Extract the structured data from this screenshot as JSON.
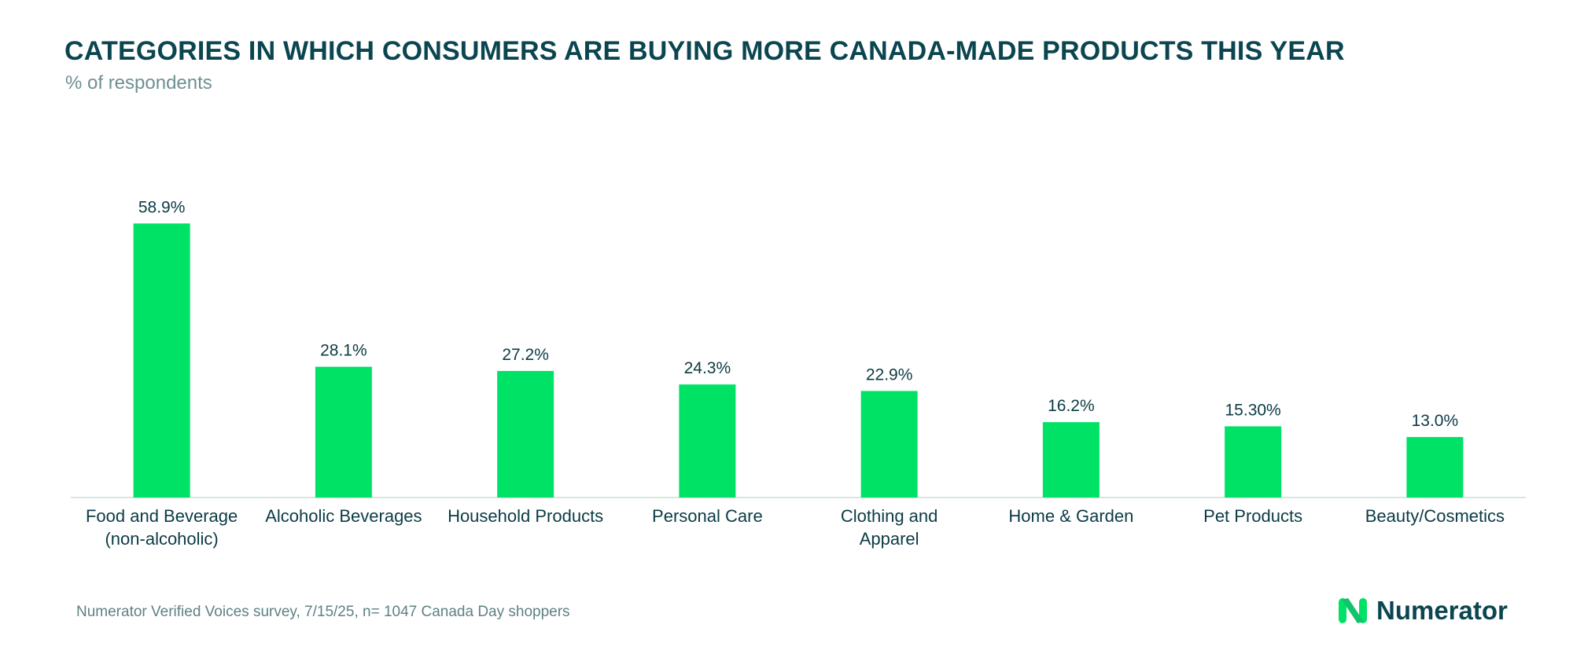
{
  "header": {
    "title": "CATEGORIES IN WHICH CONSUMERS ARE BUYING MORE CANADA-MADE PRODUCTS THIS YEAR",
    "subtitle": "% of respondents"
  },
  "footer": {
    "source": "Numerator Verified Voices survey, 7/15/25, n= 1047 Canada Day shoppers",
    "brand": "Numerator"
  },
  "colors": {
    "bar": "#00e266",
    "baseline": "#d6e6e2",
    "label": "#0b3b45"
  },
  "chart_data": {
    "type": "bar",
    "title": "CATEGORIES IN WHICH CONSUMERS ARE BUYING MORE CANADA-MADE PRODUCTS THIS YEAR",
    "subtitle": "% of respondents",
    "xlabel": "",
    "ylabel": "% of respondents",
    "ylim": [
      0,
      60
    ],
    "grid": false,
    "legend": "none",
    "categories": [
      [
        "Food and Beverage",
        "(non-alcoholic)"
      ],
      [
        "Alcoholic Beverages"
      ],
      [
        "Household Products"
      ],
      [
        "Personal Care"
      ],
      [
        "Clothing and",
        "Apparel"
      ],
      [
        "Home & Garden"
      ],
      [
        "Pet Products"
      ],
      [
        "Beauty/Cosmetics"
      ]
    ],
    "values": [
      58.9,
      28.1,
      27.2,
      24.3,
      22.9,
      16.2,
      15.3,
      13.0
    ],
    "data_labels": [
      "58.9%",
      "28.1%",
      "27.2%",
      "24.3%",
      "22.9%",
      "16.2%",
      "15.30%",
      "13.0%"
    ]
  }
}
